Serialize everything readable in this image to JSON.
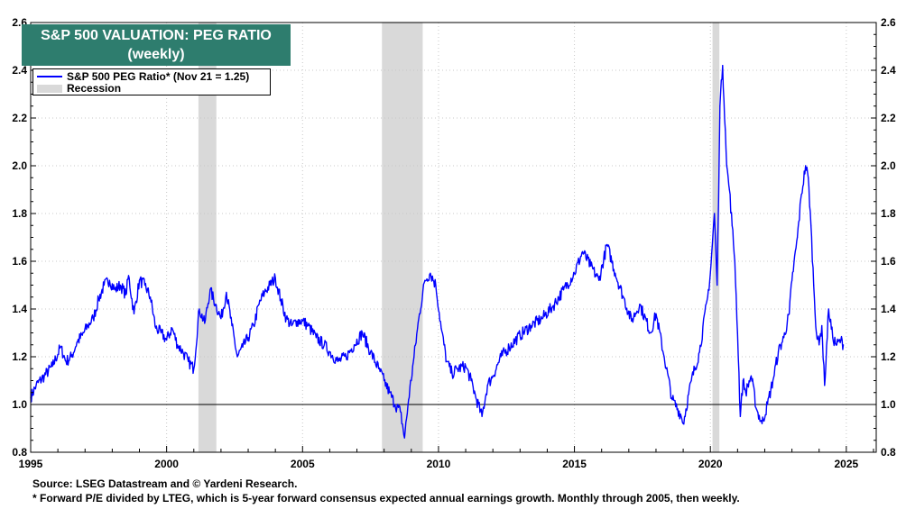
{
  "colors": {
    "line": "#0000ff",
    "recession": "#d9d9d9",
    "title_bg": "#2e7d6e",
    "ref_line": "#000000"
  },
  "chart_data": {
    "type": "line",
    "title": "S&P 500 VALUATION: PEG RATIO",
    "subtitle": "(weekly)",
    "xlabel": "",
    "ylabel": "",
    "xlim": [
      1995,
      2026.1
    ],
    "ylim": [
      0.8,
      2.6
    ],
    "x_ticks": [
      "1995",
      "2000",
      "2005",
      "2010",
      "2015",
      "2020",
      "2025"
    ],
    "y_ticks": [
      "0.8",
      "1.0",
      "1.2",
      "1.4",
      "1.6",
      "1.8",
      "2.0",
      "2.2",
      "2.4",
      "2.6"
    ],
    "grid": true,
    "reference_line": 1.0,
    "legend_position": "top-left",
    "legend": [
      {
        "label": "S&P 500 PEG Ratio* (Nov 21 = 1.25)",
        "kind": "line"
      },
      {
        "label": "Recession",
        "kind": "shade"
      }
    ],
    "recessions": [
      [
        2001.17,
        2001.83
      ],
      [
        2007.92,
        2009.42
      ],
      [
        2020.08,
        2020.33
      ]
    ],
    "series": [
      {
        "name": "S&P 500 PEG Ratio* (Nov 21 = 1.25)",
        "x": [
          1995.0,
          1995.2,
          1995.5,
          1995.8,
          1996.1,
          1996.3,
          1996.5,
          1996.7,
          1996.9,
          1997.1,
          1997.3,
          1997.5,
          1997.7,
          1997.9,
          1998.1,
          1998.3,
          1998.5,
          1998.6,
          1998.8,
          1999.0,
          1999.2,
          1999.4,
          1999.6,
          1999.8,
          2000.0,
          2000.2,
          2000.4,
          2000.6,
          2000.8,
          2001.0,
          2001.2,
          2001.4,
          2001.6,
          2001.8,
          2002.0,
          2002.2,
          2002.4,
          2002.6,
          2002.8,
          2003.0,
          2003.2,
          2003.4,
          2003.6,
          2003.8,
          2004.0,
          2004.2,
          2004.4,
          2004.6,
          2004.8,
          2005.0,
          2005.2,
          2005.5,
          2005.8,
          2006.0,
          2006.3,
          2006.6,
          2006.9,
          2007.2,
          2007.5,
          2007.8,
          2008.0,
          2008.2,
          2008.4,
          2008.6,
          2008.75,
          2008.9,
          2009.1,
          2009.3,
          2009.5,
          2009.7,
          2009.9,
          2010.1,
          2010.3,
          2010.5,
          2010.7,
          2011.0,
          2011.2,
          2011.4,
          2011.6,
          2011.8,
          2012.0,
          2012.3,
          2012.6,
          2013.0,
          2013.4,
          2013.8,
          2014.2,
          2014.6,
          2015.0,
          2015.3,
          2015.6,
          2015.9,
          2016.2,
          2016.5,
          2016.8,
          2017.1,
          2017.4,
          2017.8,
          2018.0,
          2018.3,
          2018.6,
          2018.9,
          2019.0,
          2019.3,
          2019.6,
          2019.9,
          2020.0,
          2020.15,
          2020.25,
          2020.35,
          2020.45,
          2020.55,
          2020.6,
          2020.7,
          2020.8,
          2020.9,
          2021.0,
          2021.1,
          2021.2,
          2021.3,
          2021.5,
          2021.7,
          2021.9,
          2022.1,
          2022.3,
          2022.5,
          2022.7,
          2022.9,
          2023.0,
          2023.2,
          2023.35,
          2023.5,
          2023.6,
          2023.7,
          2023.8,
          2023.9,
          2024.0,
          2024.1,
          2024.2,
          2024.35,
          2024.5,
          2024.65,
          2024.8,
          2024.89
        ],
        "values": [
          1.03,
          1.08,
          1.12,
          1.16,
          1.24,
          1.18,
          1.2,
          1.26,
          1.29,
          1.33,
          1.36,
          1.44,
          1.5,
          1.52,
          1.48,
          1.5,
          1.46,
          1.54,
          1.38,
          1.52,
          1.5,
          1.45,
          1.32,
          1.3,
          1.27,
          1.32,
          1.25,
          1.22,
          1.18,
          1.15,
          1.4,
          1.34,
          1.48,
          1.42,
          1.36,
          1.47,
          1.33,
          1.2,
          1.24,
          1.28,
          1.33,
          1.42,
          1.47,
          1.5,
          1.53,
          1.44,
          1.36,
          1.33,
          1.35,
          1.35,
          1.33,
          1.28,
          1.25,
          1.22,
          1.18,
          1.2,
          1.25,
          1.3,
          1.22,
          1.15,
          1.1,
          1.05,
          1.0,
          0.97,
          0.86,
          1.02,
          1.2,
          1.38,
          1.52,
          1.55,
          1.5,
          1.32,
          1.18,
          1.13,
          1.15,
          1.16,
          1.1,
          1.02,
          0.95,
          1.08,
          1.12,
          1.2,
          1.24,
          1.29,
          1.33,
          1.36,
          1.41,
          1.48,
          1.55,
          1.64,
          1.58,
          1.52,
          1.67,
          1.55,
          1.45,
          1.35,
          1.42,
          1.3,
          1.38,
          1.2,
          1.02,
          0.96,
          0.92,
          1.1,
          1.22,
          1.45,
          1.55,
          1.8,
          1.5,
          2.25,
          2.42,
          2.15,
          2.0,
          1.9,
          1.75,
          1.6,
          1.3,
          0.95,
          1.1,
          1.05,
          1.12,
          0.98,
          0.92,
          1.0,
          1.1,
          1.22,
          1.28,
          1.38,
          1.52,
          1.7,
          1.88,
          2.0,
          1.95,
          1.75,
          1.5,
          1.3,
          1.25,
          1.33,
          1.08,
          1.4,
          1.28,
          1.25,
          1.27,
          1.25
        ]
      }
    ]
  },
  "footer": {
    "source": "Source: LSEG Datastream and © Yardeni Research.",
    "note": "* Forward P/E divided by LTEG, which is 5-year forward consensus expected annual earnings growth. Monthly through 2005, then weekly."
  }
}
